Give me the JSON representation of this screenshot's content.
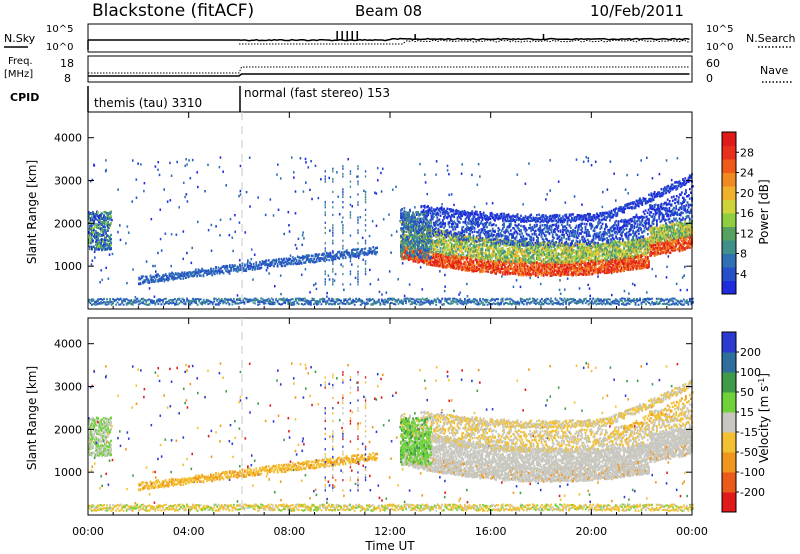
{
  "header": {
    "station": "Blackstone (fitACF)",
    "beam": "Beam 08",
    "date": "10/Feb/2011"
  },
  "strips": {
    "nsky_label": "N.Sky",
    "nsky_ticks": [
      "10^5",
      "10^0"
    ],
    "nsearch_label": "N.Search",
    "nsearch_ticks": [
      "10^5",
      "10^0"
    ],
    "freq_label_1": "Freq.",
    "freq_label_2": "[MHz]",
    "freq_ticks": [
      "18",
      "8"
    ],
    "nave_label": "Nave",
    "nave_ticks": [
      "60",
      "0"
    ],
    "cpid_label": "CPID",
    "cpid_segments": [
      "themis (tau) 3310",
      "normal (fast stereo) 153"
    ]
  },
  "chart_data": [
    {
      "type": "heatmap",
      "title": "Power",
      "xlabel": "",
      "ylabel": "Slant Range [km]",
      "xlim": [
        "00:00",
        "24:00"
      ],
      "ylim": [
        0,
        4600
      ],
      "y_ticks": [
        "1000",
        "2000",
        "3000",
        "4000"
      ],
      "colorbar": {
        "label": "Power [dB]",
        "ticks": [
          "4",
          "8",
          "12",
          "16",
          "20",
          "24",
          "28"
        ],
        "colors": [
          "#1f2bdc",
          "#2550c8",
          "#2f6fb4",
          "#3f8f8a",
          "#56a060",
          "#8fcf3f",
          "#cfd43a",
          "#f0b02a",
          "#f08a20",
          "#ef5a1a",
          "#e8301a",
          "#e01a1a"
        ]
      }
    },
    {
      "type": "heatmap",
      "title": "Velocity",
      "xlabel": "Time UT",
      "ylabel": "Slant Range [km]",
      "xlim": [
        "00:00",
        "24:00"
      ],
      "ylim": [
        0,
        4600
      ],
      "x_ticks": [
        "00:00",
        "04:00",
        "08:00",
        "12:00",
        "16:00",
        "20:00",
        "00:00"
      ],
      "y_ticks": [
        "1000",
        "2000",
        "3000",
        "4000"
      ],
      "colorbar": {
        "label": "Velocity [m s^-1]",
        "ticks": [
          "200",
          "100",
          "50",
          "15",
          "-15",
          "-50",
          "-100",
          "-200"
        ],
        "colors": [
          "#2b3bd0",
          "#2f6f9c",
          "#3f9a4a",
          "#6fd23a",
          "#c8c8c0",
          "#f2c030",
          "#f0961e",
          "#ea5a1a",
          "#e01a1a"
        ]
      }
    }
  ],
  "legend_markers": {
    "nsearch_style": "dotted",
    "nave_style": "dotted"
  }
}
